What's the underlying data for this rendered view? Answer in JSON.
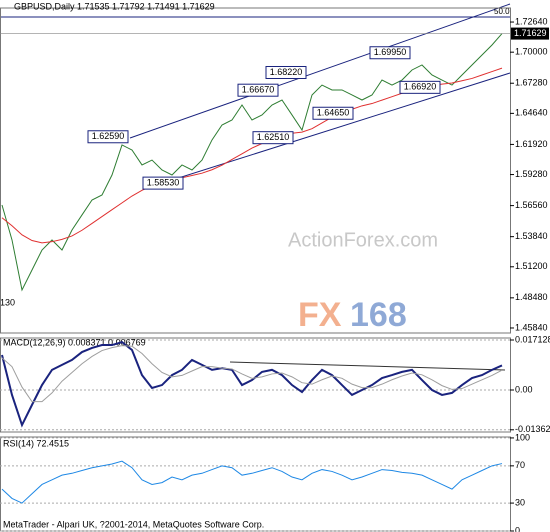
{
  "chart_data": [
    {
      "type": "line",
      "title": "GBPUSD,Daily  1.71535 1.71792 1.71491 1.71629",
      "ylim": [
        1.454,
        1.7387
      ],
      "yticks": [
        {
          "value": 1.7264,
          "label": "1.72640"
        },
        {
          "value": 1.7,
          "label": "1.70000"
        },
        {
          "value": 1.6728,
          "label": "1.67280"
        },
        {
          "value": 1.6464,
          "label": "1.64640"
        },
        {
          "value": 1.6192,
          "label": "1.61920"
        },
        {
          "value": 1.5928,
          "label": "1.59280"
        },
        {
          "value": 1.5656,
          "label": "1.56560"
        },
        {
          "value": 1.5384,
          "label": "1.53840"
        },
        {
          "value": 1.512,
          "label": "1.51200"
        },
        {
          "value": 1.4848,
          "label": "1.48480"
        },
        {
          "value": 1.4584,
          "label": "1.45840"
        }
      ],
      "grid": false,
      "last_price": {
        "value": 1.71629,
        "label": "1.71629"
      },
      "level_label": "50.0",
      "low_label": "130",
      "annotations": [
        {
          "label": "1.62590",
          "value": 1.6259
        },
        {
          "label": "1.66670",
          "value": 1.6667
        },
        {
          "label": "1.68220",
          "value": 1.6822
        },
        {
          "label": "1.69950",
          "value": 1.6995
        },
        {
          "label": "1.58530",
          "value": 1.5853
        },
        {
          "label": "1.62510",
          "value": 1.6251
        },
        {
          "label": "1.64650",
          "value": 1.6465
        },
        {
          "label": "1.66920",
          "value": 1.6692
        }
      ],
      "series": [
        {
          "name": "Close",
          "color": "#2e7d32",
          "values": [
            1.5661,
            1.5355,
            1.4917,
            1.5092,
            1.5267,
            1.5355,
            1.5267,
            1.5442,
            1.5574,
            1.5705,
            1.5749,
            1.5924,
            1.6187,
            1.6143,
            1.6012,
            1.6055,
            1.5968,
            1.5924,
            1.6012,
            1.5968,
            1.6055,
            1.6231,
            1.6362,
            1.6406,
            1.6537,
            1.6406,
            1.645,
            1.6537,
            1.6581,
            1.645,
            1.6318,
            1.6625,
            1.6712,
            1.6669,
            1.6669,
            1.6625,
            1.6581,
            1.6625,
            1.6756,
            1.6712,
            1.6756,
            1.6844,
            1.6888,
            1.68,
            1.6756,
            1.6712,
            1.68,
            1.6888,
            1.6975,
            1.7063,
            1.7163
          ]
        },
        {
          "name": "MA",
          "color": "#e03030",
          "values": [
            1.555,
            1.548,
            1.54,
            1.535,
            1.533,
            1.534,
            1.536,
            1.539,
            1.544,
            1.55,
            1.556,
            1.562,
            1.568,
            1.574,
            1.579,
            1.583,
            1.586,
            1.588,
            1.59,
            1.592,
            1.594,
            1.597,
            1.601,
            1.606,
            1.611,
            1.616,
            1.62,
            1.624,
            1.627,
            1.629,
            1.63,
            1.633,
            1.638,
            1.643,
            1.647,
            1.65,
            1.653,
            1.655,
            1.658,
            1.661,
            1.664,
            1.667,
            1.67,
            1.671,
            1.672,
            1.673,
            1.675,
            1.677,
            1.68,
            1.683,
            1.686
          ]
        }
      ]
    },
    {
      "type": "line",
      "title": "MACD(12,26,9) 0.008371 0.006769",
      "ylim": [
        -0.01439,
        0.01781
      ],
      "yticks": [
        0.017128,
        {
          "value": 0,
          "label": "0.00"
        },
        -0.013629
      ],
      "grid": true,
      "series": [
        {
          "name": "MACD",
          "color": "#1a237e",
          "values": [
            0.012,
            -0.0017,
            -0.012,
            -0.0051,
            0.0017,
            0.0069,
            0.0086,
            0.0103,
            0.013,
            0.0144,
            0.0154,
            0.0154,
            0.0164,
            0.0137,
            0.0051,
            0.0007,
            0.0017,
            0.0051,
            0.0069,
            0.0103,
            0.0086,
            0.0069,
            0.0075,
            0.0069,
            0.0017,
            0.0034,
            0.0062,
            0.0069,
            0.0051,
            0.0017,
            -0.0007,
            0.0034,
            0.0069,
            0.0051,
            0.0017,
            -0.0017,
            0.0,
            0.0017,
            0.0041,
            0.0051,
            0.0062,
            0.0069,
            0.0034,
            0.0,
            -0.0017,
            -0.001,
            0.0017,
            0.0041,
            0.0051,
            0.0069,
            0.0084
          ]
        },
        {
          "name": "Signal",
          "color": "#9e9e9e",
          "values": [
            0.011,
            0.008,
            0.001,
            -0.004,
            -0.004,
            -0.001,
            0.003,
            0.006,
            0.009,
            0.0115,
            0.0135,
            0.0145,
            0.0152,
            0.015,
            0.0125,
            0.009,
            0.006,
            0.0045,
            0.005,
            0.0065,
            0.008,
            0.008,
            0.0075,
            0.0072,
            0.0055,
            0.004,
            0.0045,
            0.0055,
            0.0058,
            0.0045,
            0.0025,
            0.002,
            0.0035,
            0.0048,
            0.004,
            0.002,
            0.0008,
            0.0008,
            0.002,
            0.0035,
            0.0048,
            0.0058,
            0.0052,
            0.0035,
            0.0015,
            0.0002,
            0.0005,
            0.002,
            0.0035,
            0.005,
            0.0068
          ]
        }
      ]
    },
    {
      "type": "line",
      "title": "RSI(14) 72.4515",
      "ylim": [
        0,
        101
      ],
      "yticks": [
        100,
        70,
        30,
        0
      ],
      "grid": true,
      "series": [
        {
          "name": "RSI",
          "color": "#1e88e5",
          "values": [
            45,
            35,
            30,
            40,
            50,
            55,
            60,
            62,
            65,
            68,
            70,
            72,
            75,
            68,
            55,
            50,
            52,
            58,
            55,
            60,
            62,
            66,
            70,
            68,
            60,
            62,
            65,
            68,
            64,
            58,
            55,
            62,
            66,
            64,
            60,
            55,
            58,
            62,
            66,
            65,
            63,
            62,
            60,
            55,
            50,
            45,
            55,
            60,
            65,
            70,
            72.45
          ]
        }
      ]
    }
  ],
  "watermark": "ActionForex.com",
  "logo": [
    "FX",
    "168"
  ],
  "footer": "MetaTrader - Alpari UK, ?2001-2014, MetaQuotes Software Corp."
}
